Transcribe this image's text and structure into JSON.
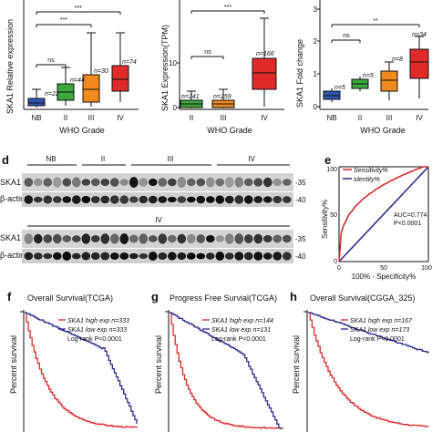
{
  "colors": {
    "nb": "#2f56b5",
    "ii": "#3aa83a",
    "iii": "#f08a1c",
    "iv": "#e02a2a",
    "high": "#e02a2a",
    "low": "#2a2f8f",
    "sens": "#d62b2b",
    "ident": "#2a2f8f"
  },
  "panel_top": {
    "left": {
      "ylabel": "SKA1 Relative expression",
      "sig": [
        "***",
        "***",
        "ns"
      ],
      "ns": [
        "n=22",
        "n=44",
        "n=30",
        "n=74"
      ],
      "ticks": [
        "NB",
        "II",
        "III",
        "IV"
      ],
      "xlabel": "WHO Grade"
    },
    "mid": {
      "ylabel": "SKA1 Expression(TPM)",
      "sig": [
        "***",
        "ns"
      ],
      "ns": [
        "n=241",
        "n=259",
        "n=166"
      ],
      "ticks": [
        "II",
        "III",
        "IV"
      ],
      "yticks": [
        "10",
        "0"
      ],
      "xlabel": "WHO Grade"
    },
    "right": {
      "ylabel": "SKA1 Fold change",
      "sig": [
        "ns",
        "**"
      ],
      "ns": [
        "n=5",
        "n=5",
        "n=8",
        "n=34"
      ],
      "ticks": [
        "NB",
        "II",
        "III",
        "IV"
      ],
      "yticks": [
        "3",
        "2",
        "1",
        "0"
      ],
      "xlabel": "WHO Grade"
    }
  },
  "panel_d": {
    "letter": "d",
    "groups1": [
      "NB",
      "II",
      "III",
      "IV"
    ],
    "group2": "IV",
    "row_labels": [
      "SKA1",
      "β-actin",
      "SKA1",
      "β-actin"
    ],
    "mw": [
      "-35",
      "-40",
      "-35",
      "-40"
    ]
  },
  "panel_e": {
    "letter": "e",
    "legend": [
      "Sensitivity%",
      "Identity%"
    ],
    "auc": "AUC=0.774",
    "p": "P<0.0001",
    "ylabel": "Sensitivity%",
    "xlabel": "100% - Specificity%",
    "ticks_x": [
      "0",
      "50",
      "100"
    ],
    "ticks_y": [
      "100",
      "50",
      "0"
    ]
  },
  "km": [
    {
      "letter": "f",
      "title": "Overall Survival(TCGA)",
      "high": "SKA1 high exp n=333",
      "low": "SKA1 low exp n=333",
      "p": "Log-rank P<0.0001",
      "ylabel": "Percent survival"
    },
    {
      "letter": "g",
      "title": "Progress Free Survial(TCGA)",
      "high": "SKA1 high exp n=144",
      "low": "SKA1 low exp n=131",
      "p": "Log-rank P<0.0001",
      "ylabel": "Percent survival"
    },
    {
      "letter": "h",
      "title": "Overall Survival(CGGA_325)",
      "high": "SKA1 high exp n=167",
      "low": "SKA1 low exp n=173",
      "p": "Log-rank P<0.0001",
      "ylabel": "Percent survival"
    }
  ]
}
